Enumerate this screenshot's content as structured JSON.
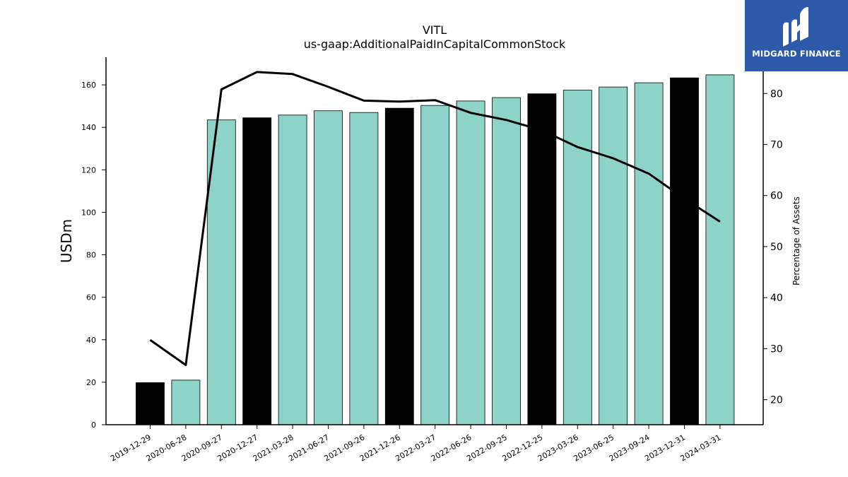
{
  "chart_data": {
    "type": "bar",
    "title": "VITL",
    "subtitle": "us-gaap:AdditionalPaidInCapitalCommonStock",
    "ylabel": "USDm",
    "y2label": "Percentage of Assets",
    "categories": [
      "2019-12-29",
      "2020-06-28",
      "2020-09-27",
      "2020-12-27",
      "2021-03-28",
      "2021-06-27",
      "2021-09-26",
      "2021-12-26",
      "2022-03-27",
      "2022-06-26",
      "2022-09-25",
      "2022-12-25",
      "2023-03-26",
      "2023-06-25",
      "2023-09-24",
      "2023-12-31",
      "2024-03-31"
    ],
    "series": [
      {
        "type": "bar",
        "axis": "left",
        "values": [
          19.8,
          21.0,
          143.5,
          144.5,
          145.8,
          147.8,
          147.0,
          149.0,
          150.3,
          152.4,
          154.0,
          155.8,
          157.5,
          159.0,
          161.0,
          163.3,
          164.7
        ],
        "highlight": [
          true,
          false,
          false,
          true,
          false,
          false,
          false,
          true,
          false,
          false,
          false,
          true,
          false,
          false,
          false,
          true,
          false
        ]
      },
      {
        "type": "line",
        "axis": "right",
        "values": [
          31.7,
          26.8,
          80.8,
          84.2,
          83.8,
          81.3,
          78.6,
          78.4,
          78.7,
          76.2,
          74.8,
          72.8,
          69.5,
          67.3,
          64.3,
          59.4,
          54.9
        ]
      }
    ],
    "ylim": [
      0,
      173
    ],
    "y2lim": [
      15.1,
      87.1
    ],
    "yticks": [
      0,
      20,
      40,
      60,
      80,
      100,
      120,
      140,
      160
    ],
    "y2ticks": [
      20,
      30,
      40,
      50,
      60,
      70,
      80
    ],
    "colors": {
      "bar": "#8dd3c7",
      "highlight": "#000000",
      "line": "#000000",
      "edge": "#000000"
    },
    "grid": false,
    "legend": "none"
  },
  "logo": {
    "name": "MIDGARD FINANCE"
  }
}
